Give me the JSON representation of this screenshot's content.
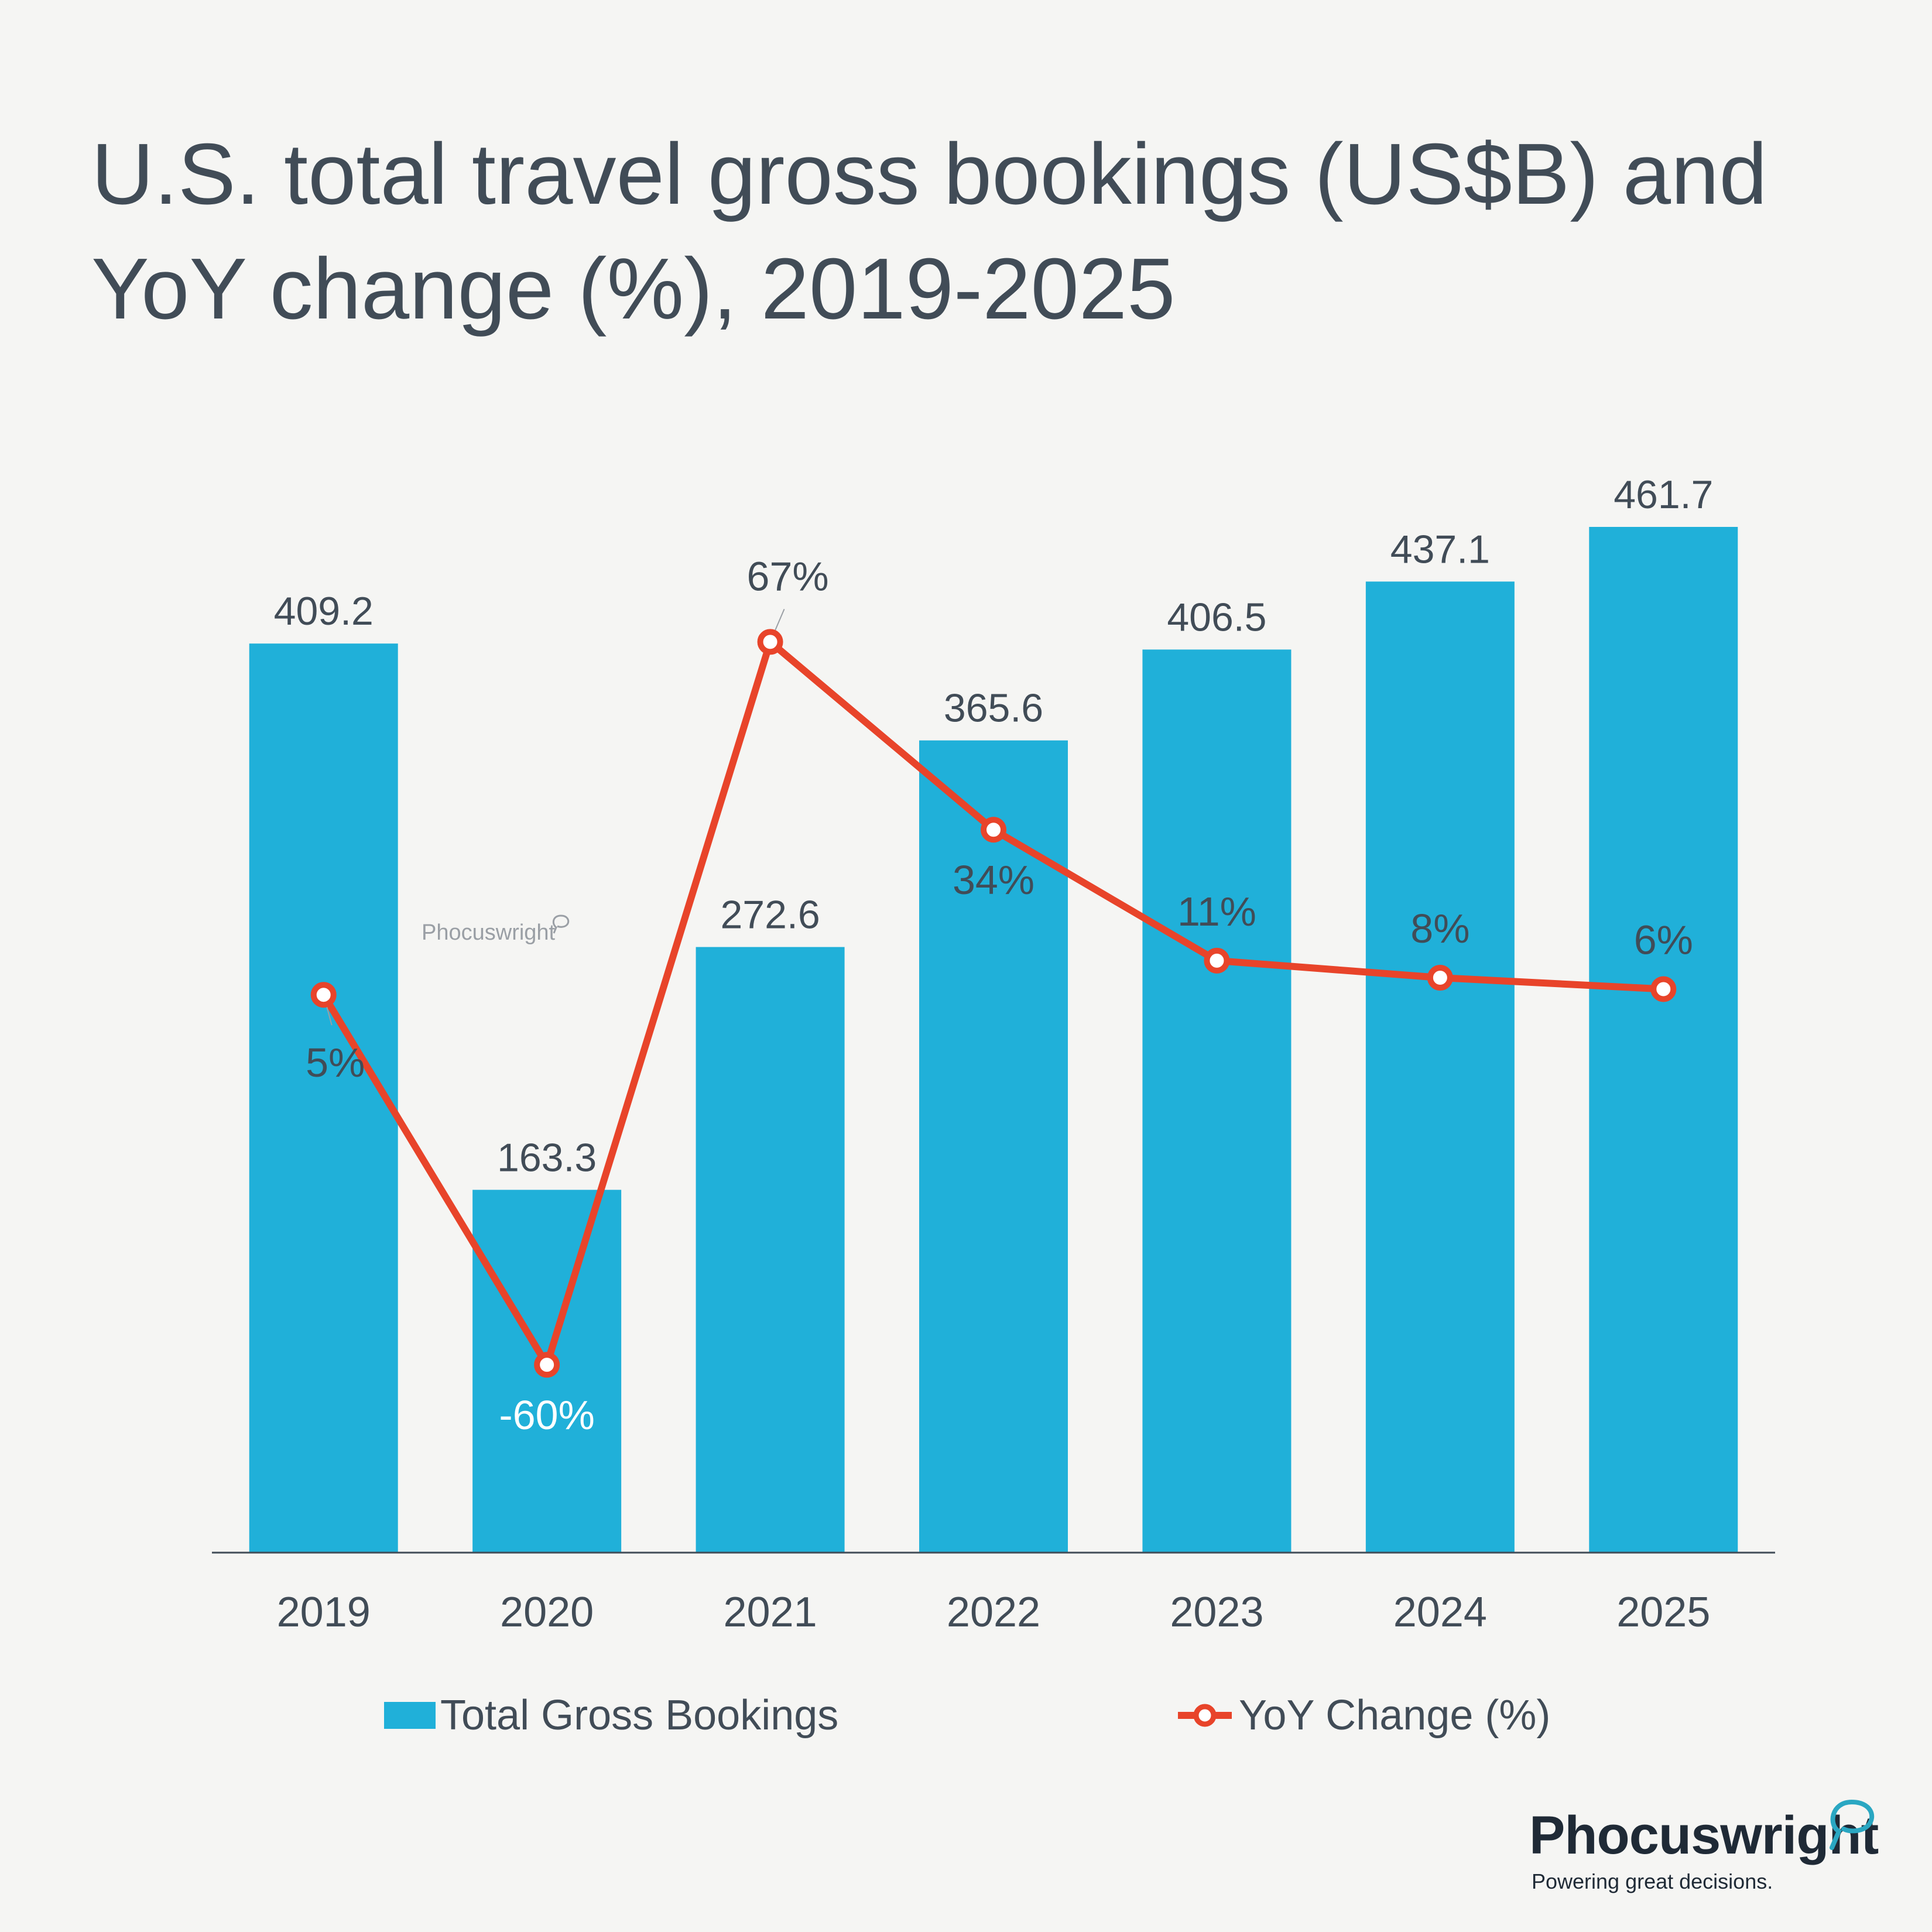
{
  "chart_data": {
    "type": "bar",
    "title": "U.S. total travel gross bookings (US$B) and YoY change (%), 2019-2025",
    "categories": [
      "2019",
      "2020",
      "2021",
      "2022",
      "2023",
      "2024",
      "2025"
    ],
    "series": [
      {
        "name": "Total Gross Bookings",
        "type": "bar",
        "values": [
          409.2,
          163.3,
          272.6,
          365.6,
          406.5,
          437.1,
          461.7
        ],
        "labels": [
          "409.2",
          "163.3",
          "272.6",
          "365.6",
          "406.5",
          "437.1",
          "461.7"
        ],
        "color": "#20b0d9"
      },
      {
        "name": "YoY Change (%)",
        "type": "line",
        "values": [
          5,
          -60,
          67,
          34,
          11,
          8,
          6
        ],
        "labels": [
          "5%",
          "-60%",
          "67%",
          "34%",
          "11%",
          "8%",
          "6%"
        ],
        "color": "#e8442a"
      }
    ],
    "bar_axis_range": [
      0,
      461.7
    ],
    "line_axis_range": [
      -75,
      80
    ],
    "grid": false,
    "legend_position": "bottom"
  },
  "legend": {
    "bars_label": "Total Gross Bookings",
    "line_label": "YoY Change (%)"
  },
  "brand": {
    "name": "Phocuswright",
    "tagline": "Powering great decisions.",
    "watermark": "Phocuswright"
  },
  "colors": {
    "background": "#f5f5f3",
    "text": "#414c57",
    "bar": "#20b0d9",
    "line": "#e8442a",
    "brand_accent": "#2aa7c2"
  }
}
